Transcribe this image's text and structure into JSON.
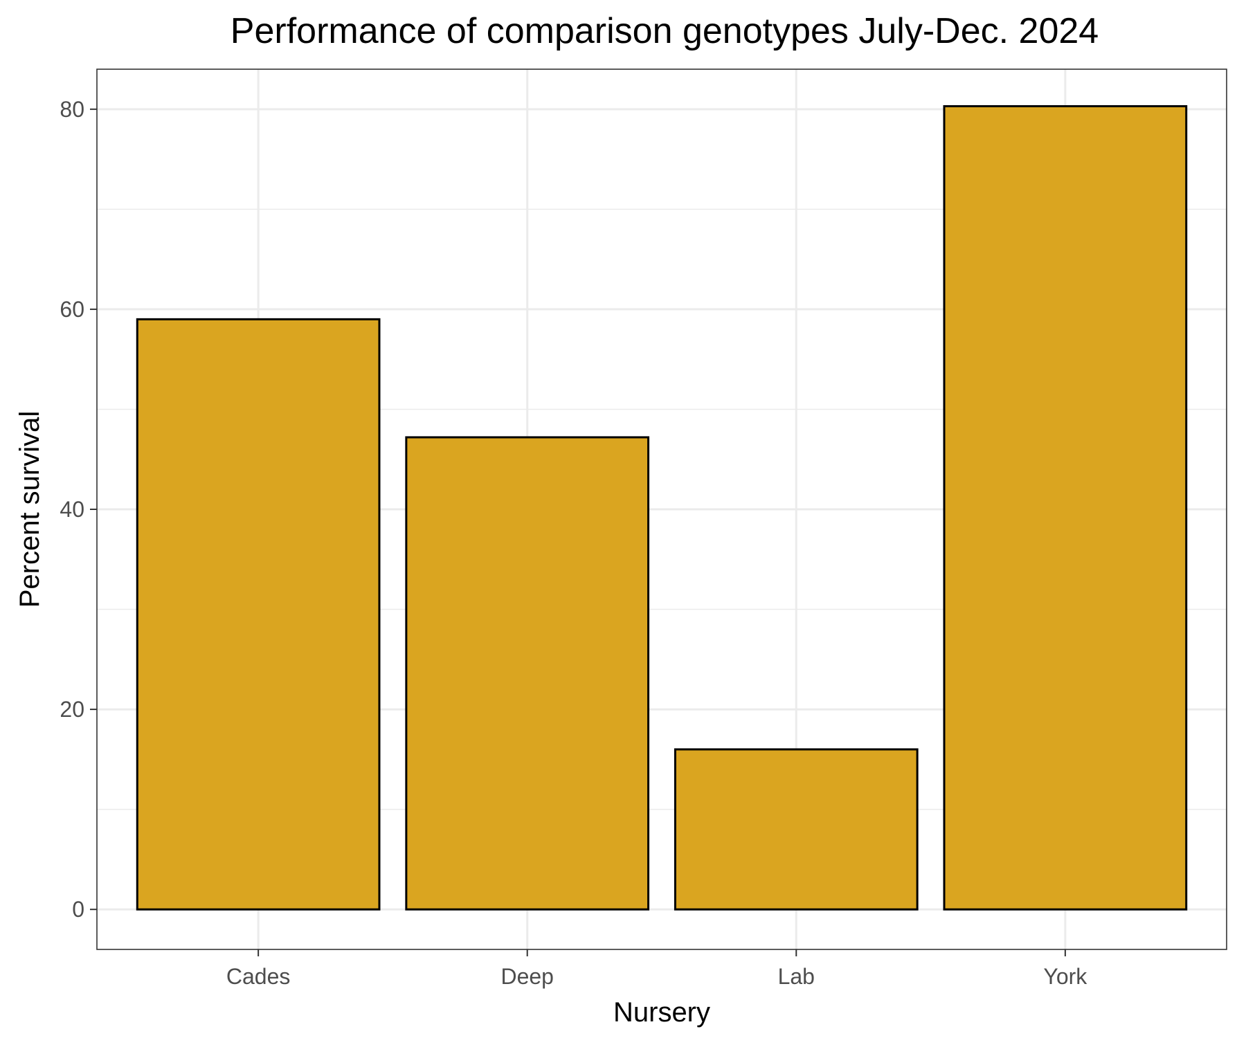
{
  "chart_data": {
    "type": "bar",
    "title": "Performance of comparison genotypes July-Dec. 2024",
    "xlabel": "Nursery",
    "ylabel": "Percent survival",
    "categories": [
      "Cades",
      "Deep",
      "Lab",
      "York"
    ],
    "values": [
      59,
      47.2,
      16,
      80.3
    ],
    "ylim": [
      -4,
      84
    ],
    "yticks": [
      0,
      20,
      40,
      60,
      80
    ],
    "y_minor_ticks": [
      10,
      30,
      50,
      70
    ],
    "grid": true,
    "bar_fill_color": "#DAA520",
    "bar_stroke_color": "#000000",
    "panel_border_color": "#333333",
    "grid_color": "#EBEBEB"
  }
}
